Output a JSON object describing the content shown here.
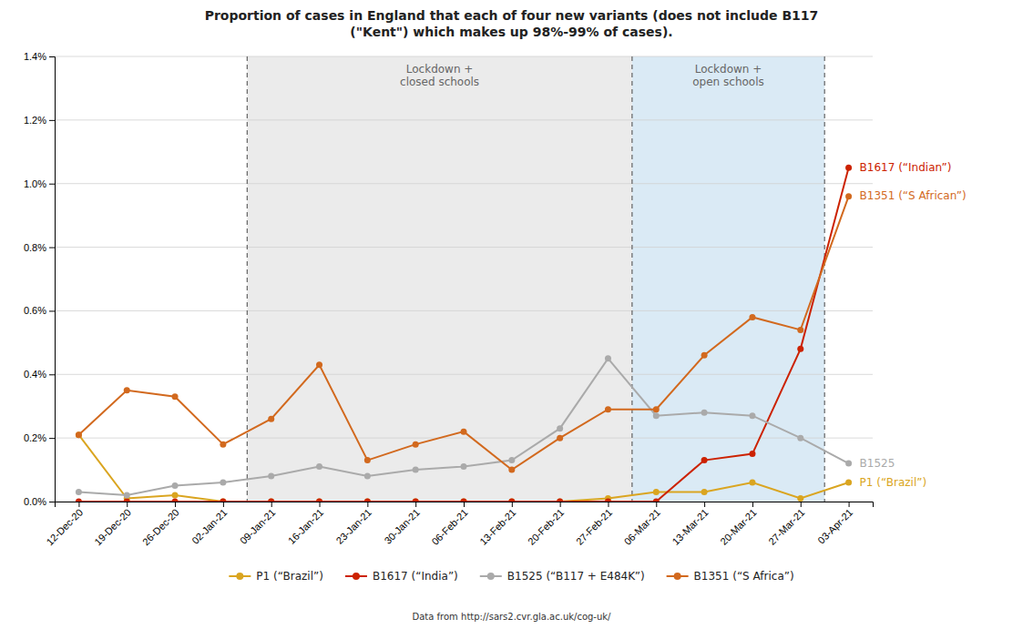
{
  "chart_data": {
    "type": "line",
    "title": "Proportion of cases in England that each of four new variants (does not include B117\n(\"Kent\") which makes up 98%-99% of cases).",
    "categories": [
      "12-Dec-20",
      "19-Dec-20",
      "26-Dec-20",
      "02-Jan-21",
      "09-Jan-21",
      "16-Jan-21",
      "23-Jan-21",
      "30-Jan-21",
      "06-Feb-21",
      "13-Feb-21",
      "20-Feb-21",
      "27-Feb-21",
      "06-Mar-21",
      "13-Mar-21",
      "20-Mar-21",
      "27-Mar-21",
      "03-Apr-21"
    ],
    "series": [
      {
        "name": "P1 (“Brazil”)",
        "color": "#DAA520",
        "annotation": "P1 (“Brazil”)",
        "values": [
          0.0021,
          0.0001,
          0.0002,
          0.0,
          0.0,
          0.0,
          0.0,
          0.0,
          0.0,
          0.0,
          0.0,
          0.0001,
          0.0003,
          0.0003,
          0.0006,
          0.0001,
          0.0006
        ]
      },
      {
        "name": "B1617 (“India”)",
        "color": "#CC2200",
        "annotation": "B1617 (“Indian”)",
        "values": [
          0.0,
          0.0,
          0.0,
          0.0,
          0.0,
          0.0,
          0.0,
          0.0,
          0.0,
          0.0,
          0.0,
          0.0,
          0.0,
          0.0013,
          0.0015,
          0.0048,
          0.0105
        ]
      },
      {
        "name": "B1525 (“B117 + E484K”)",
        "color": "#aaaaaa",
        "annotation": "B1525",
        "values": [
          0.0003,
          0.0002,
          0.0005,
          0.0006,
          0.0008,
          0.0011,
          0.0008,
          0.001,
          0.0011,
          0.0013,
          0.0023,
          0.0045,
          0.0027,
          0.0028,
          0.0027,
          0.002,
          0.0012
        ]
      },
      {
        "name": "B1351 (“S Africa”)",
        "color": "#D2691E",
        "annotation": "B1351 (“S African”)",
        "values": [
          0.0021,
          0.0035,
          0.0033,
          0.0018,
          0.0026,
          0.0043,
          0.0013,
          0.0018,
          0.0022,
          0.001,
          0.002,
          0.0029,
          0.0029,
          0.0046,
          0.0058,
          0.0054,
          0.0096
        ]
      }
    ],
    "ylim": [
      0.0,
      0.014
    ],
    "yticks": [
      {
        "value": 0.0,
        "label": "0.0%"
      },
      {
        "value": 0.002,
        "label": "0.2%"
      },
      {
        "value": 0.004,
        "label": "0.4%"
      },
      {
        "value": 0.006,
        "label": "0.6%"
      },
      {
        "value": 0.008,
        "label": "0.8%"
      },
      {
        "value": 0.01,
        "label": "1.0%"
      },
      {
        "value": 0.012,
        "label": "1.2%"
      },
      {
        "value": 0.014,
        "label": "1.4%"
      }
    ],
    "grid": true,
    "legend": "bottom",
    "marker": "circle",
    "line_style": "solid",
    "regions": [
      {
        "label": "Lockdown +\nclosed schools",
        "first": "09-Jan-21",
        "last": "27-Feb-21",
        "color": "#ebebeb"
      },
      {
        "label": "Lockdown +\nopen schools",
        "first": "06-Mar-21",
        "last": "27-Mar-21",
        "color": "#daeaf5"
      }
    ],
    "source": "Data from http://sars2.cvr.gla.ac.uk/cog-uk/"
  }
}
